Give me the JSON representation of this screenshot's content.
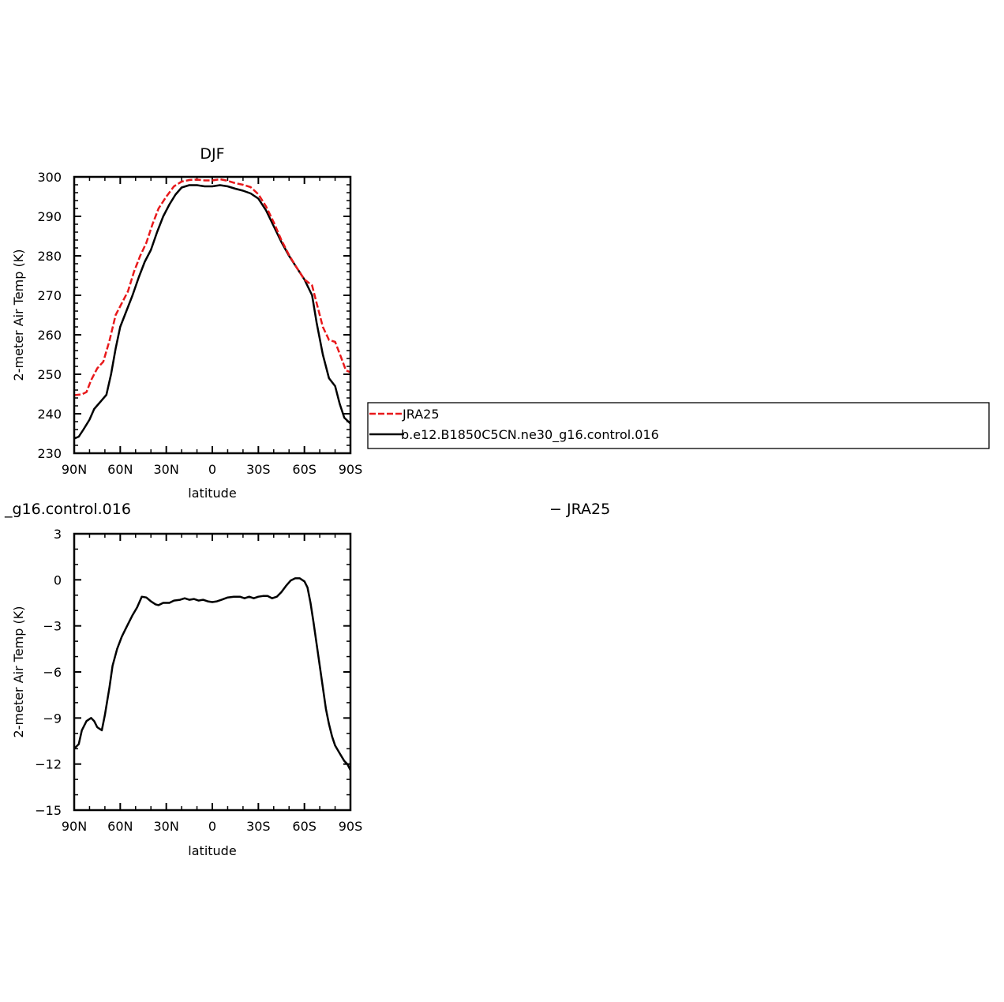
{
  "chart_data": [
    {
      "type": "line",
      "title": "DJF",
      "xlabel": "latitude",
      "ylabel": "2-meter Air Temp (K)",
      "xlim": [
        90,
        -90
      ],
      "ylim": [
        230,
        300
      ],
      "x_tick_values": [
        90,
        60,
        30,
        0,
        -30,
        -60,
        -90
      ],
      "x_tick_labels": [
        "90N",
        "60N",
        "30N",
        "0",
        "30S",
        "60S",
        "90S"
      ],
      "y_tick_values": [
        230,
        240,
        250,
        260,
        270,
        280,
        290,
        300
      ],
      "y_tick_labels": [
        "230",
        "240",
        "250",
        "260",
        "270",
        "280",
        "290",
        "300"
      ],
      "legend_position": "right",
      "series": [
        {
          "name": "JRA25",
          "color": "#e8191b",
          "dash": true,
          "points": [
            [
              90,
              244.7
            ],
            [
              85,
              244.9
            ],
            [
              82,
              245.5
            ],
            [
              79,
              248.5
            ],
            [
              75,
              251.5
            ],
            [
              71,
              253.2
            ],
            [
              67,
              258.5
            ],
            [
              63,
              265
            ],
            [
              59,
              268
            ],
            [
              55,
              271
            ],
            [
              51,
              276
            ],
            [
              47,
              280
            ],
            [
              43,
              283.3
            ],
            [
              39,
              288
            ],
            [
              35,
              292
            ],
            [
              30,
              295
            ],
            [
              25,
              297.6
            ],
            [
              20,
              298.8
            ],
            [
              15,
              299.2
            ],
            [
              10,
              299.3
            ],
            [
              5,
              299.1
            ],
            [
              0,
              299.1
            ],
            [
              -5,
              299.4
            ],
            [
              -10,
              299
            ],
            [
              -15,
              298.4
            ],
            [
              -20,
              298
            ],
            [
              -25,
              297.4
            ],
            [
              -30,
              295.6
            ],
            [
              -35,
              292.5
            ],
            [
              -40,
              288.5
            ],
            [
              -45,
              284
            ],
            [
              -50,
              280.2
            ],
            [
              -55,
              277
            ],
            [
              -60,
              274
            ],
            [
              -65,
              272.5
            ],
            [
              -68,
              268
            ],
            [
              -72,
              262
            ],
            [
              -76,
              258.7
            ],
            [
              -80,
              258.2
            ],
            [
              -84,
              254.2
            ],
            [
              -87,
              251
            ],
            [
              -90,
              250.5
            ]
          ]
        },
        {
          "name": "b.e12.B1850C5CN.ne30_g16.control.016",
          "color": "#000000",
          "dash": false,
          "points": [
            [
              90,
              233.7
            ],
            [
              87,
              234.2
            ],
            [
              84,
              236
            ],
            [
              80,
              238.5
            ],
            [
              77,
              241.2
            ],
            [
              73,
              243
            ],
            [
              69,
              244.8
            ],
            [
              66,
              250
            ],
            [
              63,
              256.5
            ],
            [
              60,
              262
            ],
            [
              56,
              266
            ],
            [
              52,
              270
            ],
            [
              48,
              274.5
            ],
            [
              44,
              278.5
            ],
            [
              40,
              281.5
            ],
            [
              36,
              286
            ],
            [
              32,
              290
            ],
            [
              28,
              293
            ],
            [
              24,
              295.5
            ],
            [
              20,
              297.3
            ],
            [
              15,
              297.9
            ],
            [
              10,
              297.9
            ],
            [
              5,
              297.6
            ],
            [
              0,
              297.6
            ],
            [
              -5,
              297.9
            ],
            [
              -10,
              297.6
            ],
            [
              -15,
              297
            ],
            [
              -20,
              296.5
            ],
            [
              -25,
              295.8
            ],
            [
              -30,
              294.5
            ],
            [
              -35,
              291.5
            ],
            [
              -40,
              287.5
            ],
            [
              -45,
              283.5
            ],
            [
              -50,
              280
            ],
            [
              -55,
              277
            ],
            [
              -60,
              274
            ],
            [
              -65,
              270
            ],
            [
              -68,
              263
            ],
            [
              -72,
              255
            ],
            [
              -76,
              249
            ],
            [
              -80,
              247
            ],
            [
              -83,
              242.5
            ],
            [
              -86,
              239
            ],
            [
              -90,
              237.5
            ]
          ]
        }
      ]
    },
    {
      "type": "line",
      "title_left": "_g16.control.016",
      "title_right": "− JRA25",
      "xlabel": "latitude",
      "ylabel": "2-meter Air Temp (K)",
      "xlim": [
        90,
        -90
      ],
      "ylim": [
        -15,
        3
      ],
      "x_tick_values": [
        90,
        60,
        30,
        0,
        -30,
        -60,
        -90
      ],
      "x_tick_labels": [
        "90N",
        "60N",
        "30N",
        "0",
        "30S",
        "60S",
        "90S"
      ],
      "y_tick_values": [
        -15,
        -12,
        -9,
        -6,
        -3,
        0,
        3
      ],
      "y_tick_labels": [
        "−15",
        "−12",
        "−9",
        "−6",
        "−3",
        "0",
        "3"
      ],
      "series": [
        {
          "color": "#000000",
          "dash": false,
          "points": [
            [
              90,
              -11
            ],
            [
              87,
              -10.7
            ],
            [
              85,
              -9.8
            ],
            [
              82,
              -9.2
            ],
            [
              79,
              -9.0
            ],
            [
              77,
              -9.2
            ],
            [
              75,
              -9.6
            ],
            [
              72,
              -9.8
            ],
            [
              70,
              -8.8
            ],
            [
              67,
              -7
            ],
            [
              65,
              -5.6
            ],
            [
              62,
              -4.5
            ],
            [
              59,
              -3.7
            ],
            [
              56,
              -3.1
            ],
            [
              52,
              -2.3
            ],
            [
              49,
              -1.8
            ],
            [
              46,
              -1.1
            ],
            [
              43,
              -1.15
            ],
            [
              40,
              -1.4
            ],
            [
              37,
              -1.6
            ],
            [
              35,
              -1.65
            ],
            [
              32,
              -1.5
            ],
            [
              28,
              -1.5
            ],
            [
              25,
              -1.35
            ],
            [
              21,
              -1.3
            ],
            [
              18,
              -1.2
            ],
            [
              15,
              -1.3
            ],
            [
              12,
              -1.25
            ],
            [
              9,
              -1.35
            ],
            [
              6,
              -1.3
            ],
            [
              3,
              -1.4
            ],
            [
              0,
              -1.45
            ],
            [
              -3,
              -1.4
            ],
            [
              -6,
              -1.3
            ],
            [
              -10,
              -1.15
            ],
            [
              -14,
              -1.1
            ],
            [
              -18,
              -1.1
            ],
            [
              -21,
              -1.2
            ],
            [
              -24,
              -1.1
            ],
            [
              -27,
              -1.2
            ],
            [
              -30,
              -1.1
            ],
            [
              -33,
              -1.05
            ],
            [
              -36,
              -1.05
            ],
            [
              -39,
              -1.2
            ],
            [
              -42,
              -1.1
            ],
            [
              -45,
              -0.8
            ],
            [
              -48,
              -0.4
            ],
            [
              -51,
              -0.05
            ],
            [
              -54,
              0.1
            ],
            [
              -57,
              0.1
            ],
            [
              -60,
              -0.1
            ],
            [
              -62,
              -0.5
            ],
            [
              -64,
              -1.5
            ],
            [
              -66,
              -2.8
            ],
            [
              -68,
              -4.2
            ],
            [
              -70,
              -5.6
            ],
            [
              -72,
              -7.0
            ],
            [
              -74,
              -8.4
            ],
            [
              -76,
              -9.4
            ],
            [
              -78,
              -10.2
            ],
            [
              -80,
              -10.8
            ],
            [
              -83,
              -11.3
            ],
            [
              -86,
              -11.8
            ],
            [
              -88,
              -12.0
            ],
            [
              -90,
              -12.4
            ]
          ]
        }
      ]
    }
  ]
}
